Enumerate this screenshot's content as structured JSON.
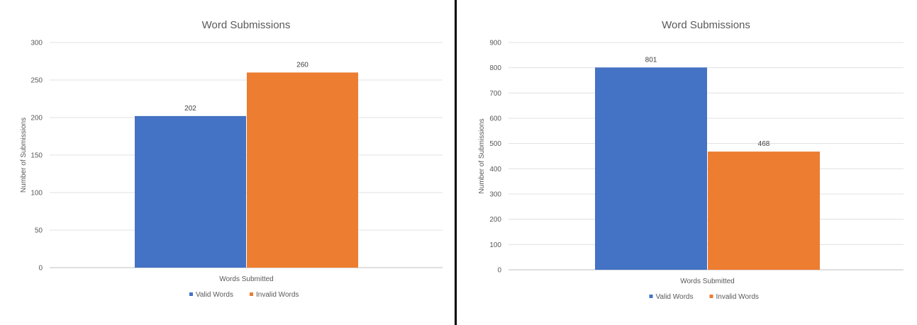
{
  "chart_data": [
    {
      "type": "bar",
      "title": "Word Submissions",
      "xlabel": "",
      "ylabel": "Number of Submissions",
      "categories": [
        "Words Submitted"
      ],
      "series": [
        {
          "name": "Valid Words",
          "values": [
            202
          ],
          "color": "#4472C4"
        },
        {
          "name": "Invalid Words",
          "values": [
            260
          ],
          "color": "#ED7D31"
        }
      ],
      "ylim": [
        0,
        300
      ],
      "yticks": [
        0,
        50,
        100,
        150,
        200,
        250,
        300
      ],
      "grid": true,
      "legend": "bottom",
      "data_labels": [
        "202",
        "260"
      ]
    },
    {
      "type": "bar",
      "title": "Word Submissions",
      "xlabel": "",
      "ylabel": "Number of Submissions",
      "categories": [
        "Words Submitted"
      ],
      "series": [
        {
          "name": "Valid Words",
          "values": [
            801
          ],
          "color": "#4472C4"
        },
        {
          "name": "Invalid Words",
          "values": [
            468
          ],
          "color": "#ED7D31"
        }
      ],
      "ylim": [
        0,
        900
      ],
      "yticks": [
        0,
        100,
        200,
        300,
        400,
        500,
        600,
        700,
        800,
        900
      ],
      "grid": true,
      "legend": "bottom",
      "data_labels": [
        "801",
        "468"
      ]
    }
  ]
}
